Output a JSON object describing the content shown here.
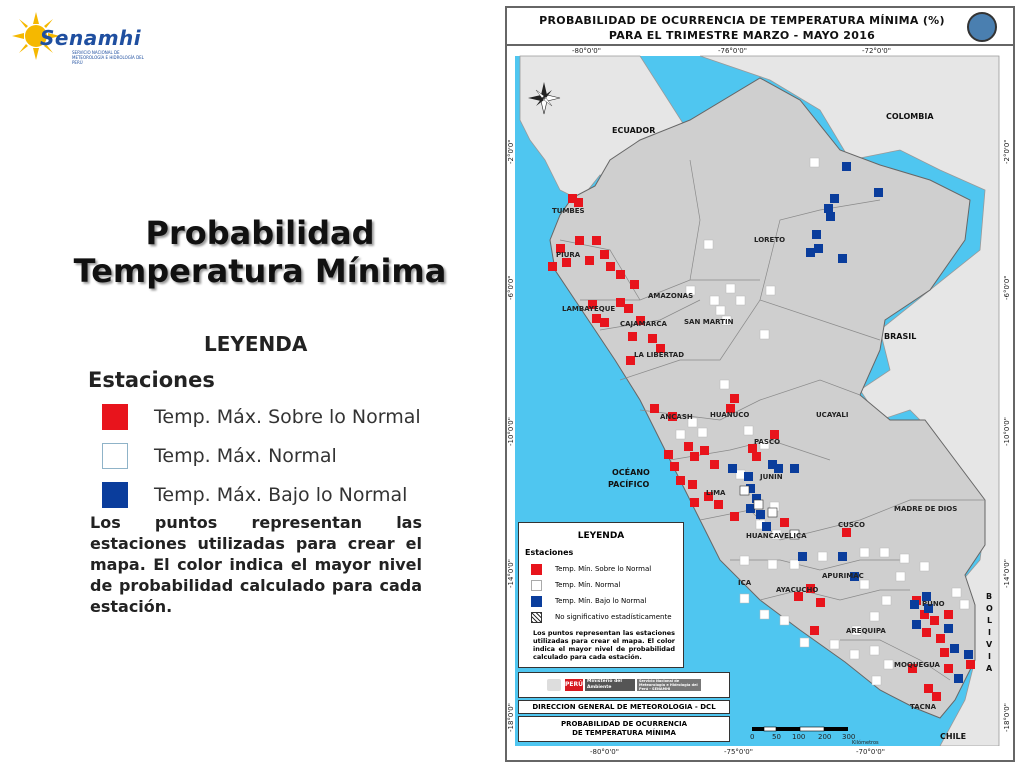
{
  "logo": {
    "brand": "Senamhi",
    "subtitle": "SERVICIO NACIONAL DE METEOROLOGÍA E HIDROLOGÍA DEL PERÚ"
  },
  "title": {
    "line1": "Probabilidad",
    "line2": "Temperatura Mínima"
  },
  "legend_left": {
    "heading": "LEYENDA",
    "stations": "Estaciones",
    "items": [
      {
        "label": "Temp. Máx. Sobre lo Normal",
        "color": "#e8141c"
      },
      {
        "label": "Temp. Máx. Normal",
        "color": "#ffffff"
      },
      {
        "label": "Temp. Máx. Bajo lo Normal",
        "color": "#0a3d9c"
      }
    ],
    "note": "Los puntos representan las estaciones utilizadas para crear el mapa. El color indica el mayor nivel de probabilidad calculado para cada estación."
  },
  "map": {
    "title_line1": "PROBABILIDAD DE OCURRENCIA DE TEMPERATURA MÍNIMA (%)",
    "title_line2": "PARA EL TRIMESTRE MARZO - MAYO 2016",
    "coords_top": [
      "-80°0'0\"",
      "-76°0'0\"",
      "-72°0'0\""
    ],
    "coords_bottom": [
      "-80°0'0\"",
      "-75°0'0\"",
      "-70°0'0\""
    ],
    "coords_left": [
      "-2°0'0\"",
      "-6°0'0\"",
      "-10°0'0\"",
      "-14°0'0\"",
      "-18°0'0\""
    ],
    "coords_right": [
      "-2°0'0\"",
      "-6°0'0\"",
      "-10°0'0\"",
      "-14°0'0\"",
      "-18°0'0\""
    ],
    "countries": [
      "ECUADOR",
      "COLOMBIA",
      "BRASIL",
      "CHILE",
      "OCÉANO",
      "PACÍFICO"
    ],
    "bolivia_letters": [
      "B",
      "O",
      "L",
      "I",
      "V",
      "I",
      "A"
    ],
    "regions": [
      "TUMBES",
      "PIURA",
      "LAMBAYEQUE",
      "CAJAMARCA",
      "LA LIBERTAD",
      "AMAZONAS",
      "SAN MARTIN",
      "LORETO",
      "ANCASH",
      "HUANUCO",
      "UCAYALI",
      "PASCO",
      "JUNIN",
      "LIMA",
      "HUANCAVELICA",
      "ICA",
      "AYACUCHO",
      "APURIMAC",
      "CUSCO",
      "MADRE DE DIOS",
      "PUNO",
      "AREQUIPA",
      "MOQUEGUA",
      "TACNA"
    ],
    "colors": {
      "ocean": "#4fc6f0",
      "land_peru": "#cfcfcf",
      "land_other": "#e6e6e6",
      "above": "#e8141c",
      "below": "#0a3d9c",
      "normal": "#ffffff"
    }
  },
  "inset_legend": {
    "heading": "LEYENDA",
    "stations": "Estaciones",
    "items": [
      "Temp. Mín. Sobre lo Normal",
      "Temp. Mín. Normal",
      "Temp. Mín. Bajo lo Normal",
      "No significativo estadísticamente"
    ],
    "note": "Los puntos representan las estaciones utilizadas para crear el mapa. El color indica el mayor nivel de probabilidad calculado para cada estación."
  },
  "footer": {
    "peru": "PERÚ",
    "ministry": "Ministerio del Ambiente",
    "senamhi": "Servicio Nacional de Meteorología e Hidrología del Perú - SENAMHI",
    "dgm": "DIRECCION GENERAL DE METEOROLOGIA - DCL",
    "prob_line1": "PROBABILIDAD DE OCURRENCIA",
    "prob_line2": "DE TEMPERATURA MÍNIMA"
  },
  "scale": {
    "ticks": [
      "0",
      "50",
      "100",
      "200",
      "300"
    ],
    "unit": "Kilómetros"
  }
}
